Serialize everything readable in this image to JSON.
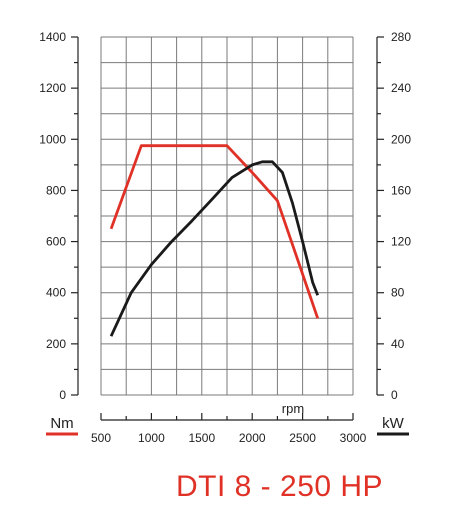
{
  "chart_data": {
    "type": "line",
    "title": "DTI 8 - 250 HP",
    "xlabel": "rpm",
    "xlim": [
      500,
      3000
    ],
    "x_ticks": [
      500,
      1000,
      1500,
      2000,
      2500,
      3000
    ],
    "y_left": {
      "label": "Nm",
      "lim": [
        0,
        1400
      ],
      "ticks": [
        0,
        200,
        400,
        600,
        800,
        1000,
        1200,
        1400
      ]
    },
    "y_right": {
      "label": "kW",
      "lim": [
        0,
        280
      ],
      "ticks": [
        0,
        40,
        80,
        120,
        160,
        200,
        240,
        280
      ]
    },
    "grid": true,
    "series": [
      {
        "axis": "left",
        "color": "#e03127",
        "points": [
          [
            600,
            650
          ],
          [
            900,
            975
          ],
          [
            1000,
            975
          ],
          [
            1200,
            975
          ],
          [
            1400,
            975
          ],
          [
            1600,
            975
          ],
          [
            1750,
            975
          ],
          [
            2000,
            870
          ],
          [
            2250,
            760
          ],
          [
            2450,
            530
          ],
          [
            2650,
            300
          ]
        ]
      },
      {
        "axis": "right",
        "color": "#1a1a1a",
        "points": [
          [
            600,
            46
          ],
          [
            800,
            80
          ],
          [
            1000,
            102
          ],
          [
            1200,
            120
          ],
          [
            1400,
            136
          ],
          [
            1600,
            153
          ],
          [
            1800,
            170
          ],
          [
            2000,
            180
          ],
          [
            2100,
            182.4
          ],
          [
            2200,
            182.4
          ],
          [
            2300,
            174
          ],
          [
            2400,
            150
          ],
          [
            2500,
            120
          ],
          [
            2600,
            88
          ],
          [
            2650,
            78
          ]
        ]
      }
    ]
  },
  "colors": {
    "torque": "#e03127",
    "power": "#1a1a1a",
    "grid": "#7a7a7a",
    "title": "#e03127"
  }
}
